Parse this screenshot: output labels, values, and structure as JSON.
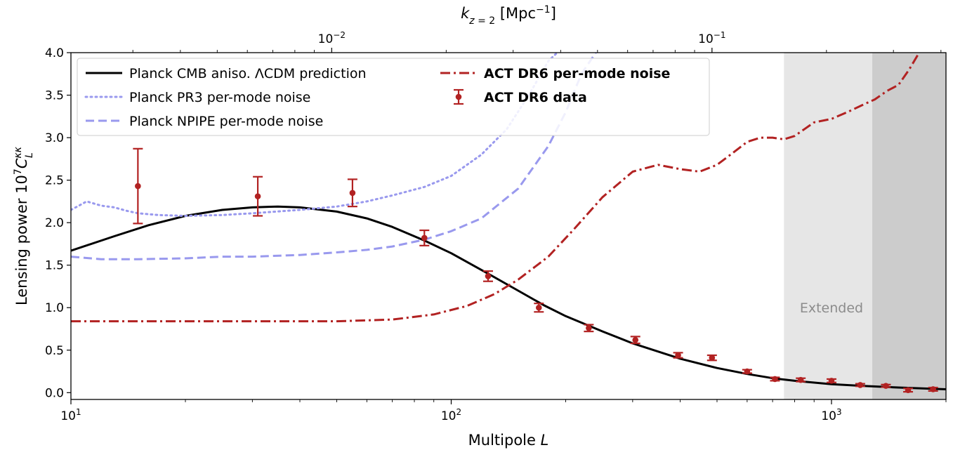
{
  "chart_data": {
    "type": "line",
    "x_scale": "log",
    "xlim": [
      10,
      2000
    ],
    "ylim": [
      -0.08,
      4.0
    ],
    "xlabel": "Multipole L",
    "ylabel": "Lensing power 10^7 C_L^κκ",
    "top_axis_label": "k_{z=2} [Mpc^-1]",
    "top_axis_ticks": [
      {
        "label": "10^-2",
        "L": 48.5
      },
      {
        "label": "10^-1",
        "L": 485
      }
    ],
    "x_ticks": [
      {
        "label": "10^1",
        "L": 10
      },
      {
        "label": "10^2",
        "L": 100
      },
      {
        "label": "10^3",
        "L": 1000
      }
    ],
    "y_ticks": [
      "0.0",
      "0.5",
      "1.0",
      "1.5",
      "2.0",
      "2.5",
      "3.0",
      "3.5",
      "4.0"
    ],
    "legend_position": "upper-left",
    "shaded_regions": [
      {
        "x": [
          750,
          1280
        ],
        "color": "#e6e6e6",
        "label": "Extended"
      },
      {
        "x": [
          1280,
          2000
        ],
        "color": "#cccccc",
        "label": ""
      }
    ],
    "annotation": {
      "text": "Extended",
      "L": 1000,
      "y": 1.0
    },
    "series": [
      {
        "name": "Planck CMB aniso. ΛCDM prediction",
        "style": "solid",
        "color": "#000000",
        "bold": false,
        "x": [
          10,
          13,
          16,
          20,
          25,
          30,
          35,
          40,
          50,
          60,
          70,
          85,
          100,
          125,
          150,
          175,
          200,
          250,
          300,
          400,
          500,
          600,
          700,
          800,
          1000,
          1200,
          1500,
          2000
        ],
        "y": [
          1.67,
          1.84,
          1.97,
          2.08,
          2.15,
          2.18,
          2.19,
          2.18,
          2.13,
          2.05,
          1.95,
          1.79,
          1.64,
          1.4,
          1.2,
          1.03,
          0.9,
          0.72,
          0.58,
          0.4,
          0.29,
          0.22,
          0.17,
          0.14,
          0.1,
          0.08,
          0.06,
          0.04
        ]
      },
      {
        "name": "Planck PR3 per-mode noise",
        "style": "dotted",
        "color": "#9999ee",
        "bold": false,
        "x": [
          10,
          10.5,
          11,
          12,
          13,
          14,
          15,
          17,
          20,
          25,
          30,
          40,
          50,
          60,
          70,
          85,
          100,
          120,
          140,
          160,
          180,
          190
        ],
        "y": [
          2.15,
          2.2,
          2.25,
          2.2,
          2.18,
          2.14,
          2.11,
          2.09,
          2.08,
          2.09,
          2.11,
          2.15,
          2.19,
          2.25,
          2.32,
          2.42,
          2.55,
          2.8,
          3.1,
          3.5,
          3.9,
          4.0
        ]
      },
      {
        "name": "Planck NPIPE per-mode noise",
        "style": "dashed",
        "color": "#9999ee",
        "bold": false,
        "x": [
          10,
          12,
          15,
          20,
          25,
          30,
          40,
          50,
          60,
          70,
          85,
          100,
          120,
          150,
          180,
          200,
          220,
          240
        ],
        "y": [
          1.6,
          1.57,
          1.57,
          1.58,
          1.6,
          1.6,
          1.62,
          1.65,
          1.68,
          1.72,
          1.8,
          1.9,
          2.05,
          2.4,
          2.9,
          3.3,
          3.75,
          4.0
        ]
      },
      {
        "name": "ACT DR6 per-mode noise",
        "style": "dashdot",
        "color": "#b22222",
        "bold": true,
        "x": [
          10,
          20,
          30,
          50,
          70,
          90,
          110,
          130,
          150,
          180,
          210,
          250,
          300,
          350,
          400,
          450,
          500,
          550,
          600,
          650,
          700,
          750,
          800,
          900,
          1000,
          1100,
          1200,
          1300,
          1400,
          1500,
          1600,
          1700
        ],
        "y": [
          0.84,
          0.84,
          0.84,
          0.84,
          0.86,
          0.92,
          1.02,
          1.16,
          1.33,
          1.6,
          1.92,
          2.3,
          2.6,
          2.68,
          2.63,
          2.6,
          2.68,
          2.82,
          2.95,
          3.0,
          3.0,
          2.98,
          3.02,
          3.18,
          3.22,
          3.3,
          3.38,
          3.45,
          3.55,
          3.62,
          3.8,
          4.0
        ]
      }
    ],
    "data_series": {
      "name": "ACT DR6 data",
      "color": "#b22222",
      "bold": true,
      "points": [
        {
          "x": 15,
          "y": 2.43,
          "err": 0.44
        },
        {
          "x": 31,
          "y": 2.31,
          "err": 0.23
        },
        {
          "x": 55,
          "y": 2.35,
          "err": 0.16
        },
        {
          "x": 85,
          "y": 1.82,
          "err": 0.09
        },
        {
          "x": 125,
          "y": 1.37,
          "err": 0.06
        },
        {
          "x": 170,
          "y": 1.0,
          "err": 0.05
        },
        {
          "x": 230,
          "y": 0.76,
          "err": 0.04
        },
        {
          "x": 305,
          "y": 0.62,
          "err": 0.04
        },
        {
          "x": 395,
          "y": 0.44,
          "err": 0.03
        },
        {
          "x": 485,
          "y": 0.41,
          "err": 0.03
        },
        {
          "x": 600,
          "y": 0.25,
          "err": 0.02
        },
        {
          "x": 710,
          "y": 0.16,
          "err": 0.02
        },
        {
          "x": 830,
          "y": 0.15,
          "err": 0.02
        },
        {
          "x": 1000,
          "y": 0.14,
          "err": 0.02
        },
        {
          "x": 1190,
          "y": 0.09,
          "err": 0.015
        },
        {
          "x": 1390,
          "y": 0.08,
          "err": 0.015
        },
        {
          "x": 1590,
          "y": 0.03,
          "err": 0.02
        },
        {
          "x": 1850,
          "y": 0.04,
          "err": 0.02
        }
      ]
    }
  }
}
